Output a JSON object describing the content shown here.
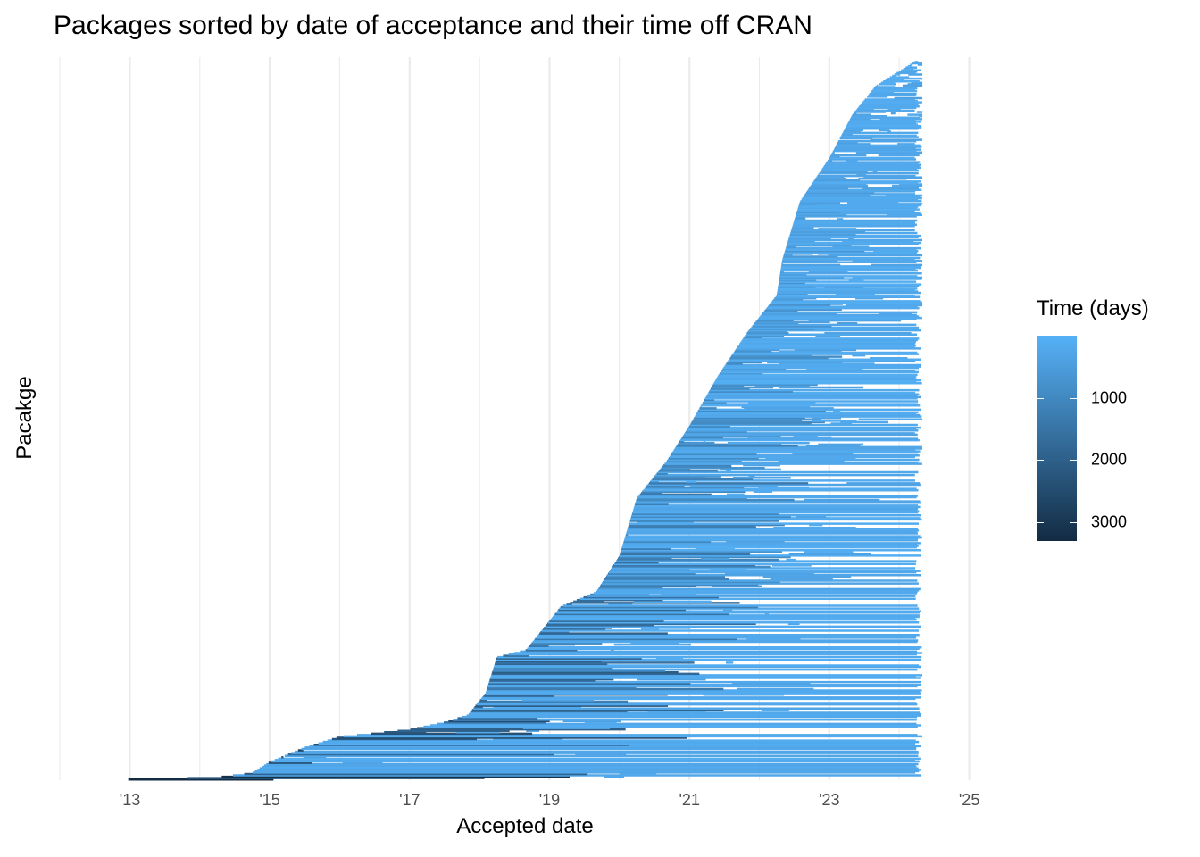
{
  "chart_data": {
    "type": "segment",
    "title": "Packages sorted by date of acceptance and their time off CRAN",
    "xlabel": "Accepted date",
    "ylabel": "Pacakge",
    "x_axis": {
      "range": [
        "2012-01-01",
        "2025-06-01"
      ],
      "ticks": [
        "2013-01-01",
        "2015-01-01",
        "2017-01-01",
        "2019-01-01",
        "2021-01-01",
        "2023-01-01",
        "2025-01-01"
      ],
      "tick_labels": [
        "'13",
        "'15",
        "'17",
        "'19",
        "'21",
        "'23",
        "'25"
      ]
    },
    "y_axis": {
      "ticks": []
    },
    "grid": true,
    "legend": {
      "title": "Time (days)",
      "placement": "right",
      "ticks": [
        1000,
        2000,
        3000
      ],
      "tick_labels": [
        "1000",
        "2000",
        "3000"
      ],
      "range": [
        0,
        3300
      ],
      "color_low": "#56b1f7",
      "color_high": "#132b43"
    },
    "acceptance_curve": [
      [
        "2012-07-01",
        0.0
      ],
      [
        "2013-07-01",
        0.002
      ],
      [
        "2014-04-01",
        0.004
      ],
      [
        "2014-10-01",
        0.01
      ],
      [
        "2015-01-01",
        0.025
      ],
      [
        "2015-07-01",
        0.045
      ],
      [
        "2016-01-01",
        0.06
      ],
      [
        "2017-01-01",
        0.07
      ],
      [
        "2017-07-01",
        0.08
      ],
      [
        "2017-11-01",
        0.09
      ],
      [
        "2018-02-01",
        0.12
      ],
      [
        "2018-04-01",
        0.17
      ],
      [
        "2018-09-01",
        0.18
      ],
      [
        "2018-12-01",
        0.21
      ],
      [
        "2019-03-01",
        0.24
      ],
      [
        "2019-09-01",
        0.26
      ],
      [
        "2020-01-01",
        0.31
      ],
      [
        "2020-04-01",
        0.39
      ],
      [
        "2020-09-01",
        0.44
      ],
      [
        "2021-01-01",
        0.49
      ],
      [
        "2021-06-01",
        0.56
      ],
      [
        "2021-11-01",
        0.62
      ],
      [
        "2022-04-01",
        0.67
      ],
      [
        "2022-05-01",
        0.72
      ],
      [
        "2022-08-01",
        0.8
      ],
      [
        "2023-01-01",
        0.86
      ],
      [
        "2023-05-01",
        0.92
      ],
      [
        "2023-09-01",
        0.96
      ],
      [
        "2024-03-01",
        0.99
      ],
      [
        "2024-05-01",
        1.0
      ]
    ],
    "end_date": "2024-05-01",
    "colors": {
      "background": "#ffffff",
      "grid": "#ebebeb"
    }
  }
}
